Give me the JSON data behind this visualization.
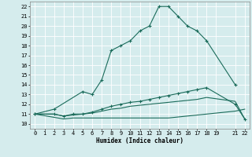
{
  "xlabel": "Humidex (Indice chaleur)",
  "bg_color": "#d5eced",
  "grid_color": "#ffffff",
  "line_color": "#1a6b5a",
  "xlim": [
    -0.5,
    22.5
  ],
  "ylim": [
    9.5,
    22.5
  ],
  "xticks": [
    0,
    1,
    2,
    3,
    4,
    5,
    6,
    7,
    8,
    9,
    10,
    11,
    12,
    13,
    14,
    15,
    16,
    17,
    18,
    19,
    21,
    22
  ],
  "yticks": [
    10,
    11,
    12,
    13,
    14,
    15,
    16,
    17,
    18,
    19,
    20,
    21,
    22
  ],
  "line1_x": [
    0,
    2,
    5,
    6,
    7,
    8,
    9,
    10,
    11,
    12,
    13,
    14,
    15,
    16,
    17,
    18,
    21
  ],
  "line1_y": [
    11,
    11.5,
    13.3,
    13.0,
    14.5,
    17.5,
    18.0,
    18.5,
    19.5,
    20.0,
    22.0,
    22.0,
    21.0,
    20.0,
    19.5,
    18.5,
    14.0
  ],
  "line2_x": [
    0,
    2,
    3,
    4,
    5,
    6,
    7,
    8,
    9,
    10,
    11,
    12,
    13,
    14,
    15,
    16,
    17,
    18,
    21,
    22
  ],
  "line2_y": [
    11,
    11.0,
    10.8,
    11.0,
    11.0,
    11.2,
    11.5,
    11.8,
    12.0,
    12.2,
    12.3,
    12.5,
    12.7,
    12.9,
    13.1,
    13.3,
    13.5,
    13.7,
    12.0,
    10.5
  ],
  "line3_x": [
    0,
    3,
    4,
    5,
    6,
    7,
    8,
    9,
    10,
    11,
    12,
    13,
    14,
    15,
    16,
    17,
    18,
    21,
    22
  ],
  "line3_y": [
    11,
    10.5,
    10.6,
    10.6,
    10.6,
    10.6,
    10.6,
    10.6,
    10.6,
    10.6,
    10.6,
    10.6,
    10.6,
    10.7,
    10.8,
    10.9,
    11.0,
    11.3,
    11.5
  ],
  "line4_x": [
    0,
    2,
    3,
    4,
    5,
    6,
    7,
    8,
    9,
    10,
    11,
    12,
    13,
    14,
    15,
    16,
    17,
    18,
    21,
    22
  ],
  "line4_y": [
    11,
    11.0,
    10.8,
    10.9,
    11.0,
    11.1,
    11.3,
    11.5,
    11.6,
    11.8,
    11.9,
    12.0,
    12.1,
    12.2,
    12.3,
    12.4,
    12.5,
    12.7,
    12.3,
    10.5
  ]
}
